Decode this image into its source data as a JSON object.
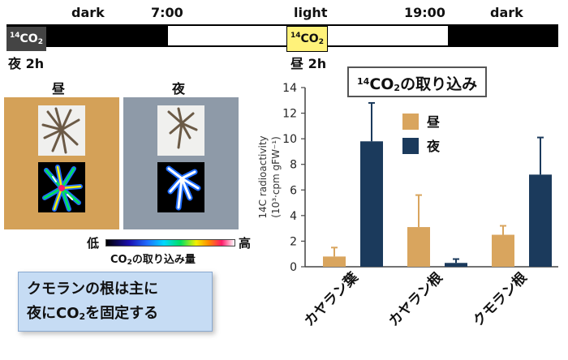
{
  "timeline": {
    "dark_left": "dark",
    "time_start": "7:00",
    "light": "light",
    "time_end": "19:00",
    "dark_right": "dark",
    "box_left_sup": "14",
    "box_left_main": "CO",
    "box_left_sub": "2",
    "box_mid_sup": "14",
    "box_mid_main": "CO",
    "box_mid_sub": "2",
    "night_note": "夜 2h",
    "day_note": "昼 2h"
  },
  "images": {
    "day_label": "昼",
    "night_label": "夜",
    "day_bg": "#d4a158",
    "night_bg": "#8e9aa8"
  },
  "scale": {
    "low": "低",
    "high": "高",
    "caption_pre": "CO",
    "caption_sub": "2",
    "caption_post": "の取り込み量"
  },
  "callout": {
    "line1": "クモランの根は主に",
    "line2_pre": "夜にCO",
    "line2_sub": "2",
    "line2_post": "を固定する"
  },
  "chart_title": {
    "sup": "14",
    "main": "CO",
    "sub": "2",
    "post": "の取り込み"
  },
  "chart_data": {
    "type": "bar",
    "categories": [
      "カヤラン葉",
      "カヤラン根",
      "クモラン根"
    ],
    "series": [
      {
        "name": "昼",
        "color": "#d9a55e",
        "values": [
          0.8,
          3.1,
          2.5
        ],
        "errors": [
          0.7,
          2.5,
          0.7
        ]
      },
      {
        "name": "夜",
        "color": "#1b3a5c",
        "values": [
          9.8,
          0.3,
          7.2
        ],
        "errors": [
          3.0,
          0.3,
          2.9
        ]
      }
    ],
    "ylabel_line1": "14C radioactivity",
    "ylabel_line2": "(10³·cpm gFW⁻¹)",
    "ylim": [
      0,
      14
    ],
    "yticks": [
      "0",
      "2",
      "4",
      "6",
      "8",
      "10",
      "12",
      "14"
    ],
    "legend_placement": "top-right"
  }
}
